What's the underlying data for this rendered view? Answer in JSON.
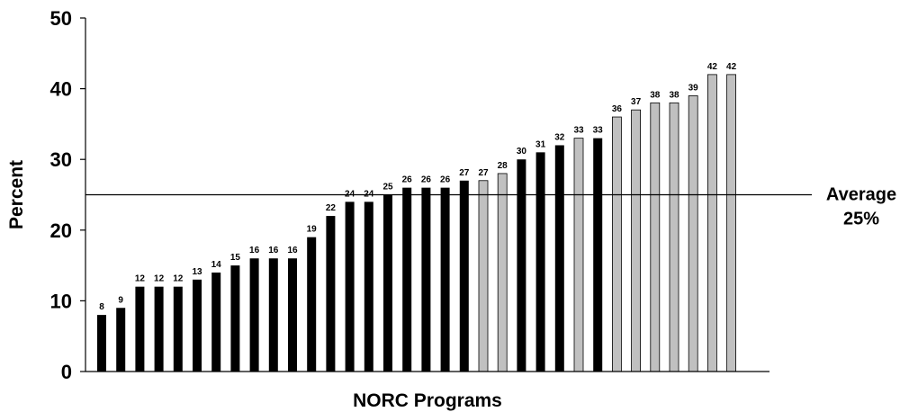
{
  "chart_data": {
    "type": "bar",
    "title": "",
    "xlabel": "NORC Programs",
    "ylabel": "Percent",
    "ylim": [
      0,
      50
    ],
    "yticks": [
      0,
      10,
      20,
      30,
      40,
      50
    ],
    "grid": false,
    "values": [
      8,
      9,
      12,
      12,
      12,
      13,
      14,
      15,
      16,
      16,
      16,
      19,
      22,
      24,
      24,
      25,
      26,
      26,
      26,
      27,
      27,
      28,
      30,
      31,
      32,
      33,
      33,
      36,
      37,
      38,
      38,
      39,
      42,
      42
    ],
    "bar_groups": [
      "black",
      "black",
      "black",
      "black",
      "black",
      "black",
      "black",
      "black",
      "black",
      "black",
      "black",
      "black",
      "black",
      "black",
      "black",
      "black",
      "black",
      "black",
      "black",
      "black",
      "gray",
      "gray",
      "black",
      "black",
      "black",
      "gray",
      "black",
      "gray",
      "gray",
      "gray",
      "gray",
      "gray",
      "gray",
      "gray"
    ],
    "colors": {
      "black": "#000000",
      "gray": "#c0c0c0",
      "bar_outline": "#000000"
    },
    "reference_line": {
      "value": 25,
      "label_line1": "Average",
      "label_line2": "25%"
    }
  }
}
